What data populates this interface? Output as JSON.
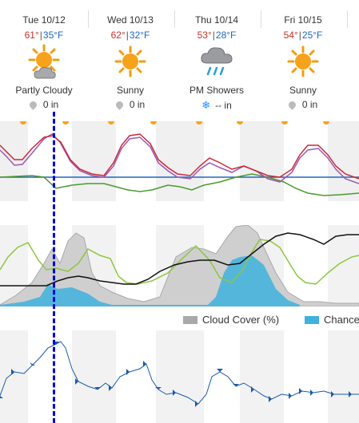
{
  "days": [
    {
      "name": "Tue 10/12",
      "hi": "61°",
      "lo": "35°F",
      "condition": "Partly Cloudy",
      "precip": "0 in",
      "icon": "partly-cloudy-icon",
      "precip_icon": "raindrop-icon"
    },
    {
      "name": "Wed 10/13",
      "hi": "62°",
      "lo": "32°F",
      "condition": "Sunny",
      "precip": "0 in",
      "icon": "sun-icon",
      "precip_icon": "raindrop-icon"
    },
    {
      "name": "Thu 10/14",
      "hi": "53°",
      "lo": "28°F",
      "condition": "PM Showers",
      "precip": "-- in",
      "icon": "rain-cloud-icon",
      "precip_icon": "snowflake-icon"
    },
    {
      "name": "Fri 10/15",
      "hi": "54°",
      "lo": "25°F",
      "condition": "Sunny",
      "precip": "0 in",
      "icon": "sun-icon",
      "precip_icon": "raindrop-icon"
    }
  ],
  "separator": "|",
  "legend": {
    "cloud_cover": "Cloud Cover (%)",
    "chance": "Chance"
  },
  "colors": {
    "hi": "#c9302c",
    "lo": "#1f66c1",
    "cursor": "#0000dd",
    "cloud": "#bdbdbd",
    "chance": "#3fb1dd",
    "temp": "#cc2936",
    "feels": "#9b59b6",
    "dew": "#4b9a2f",
    "humidity": "#8dc63f",
    "pressure": "#111111",
    "wind": "#1a5aa8"
  }
}
